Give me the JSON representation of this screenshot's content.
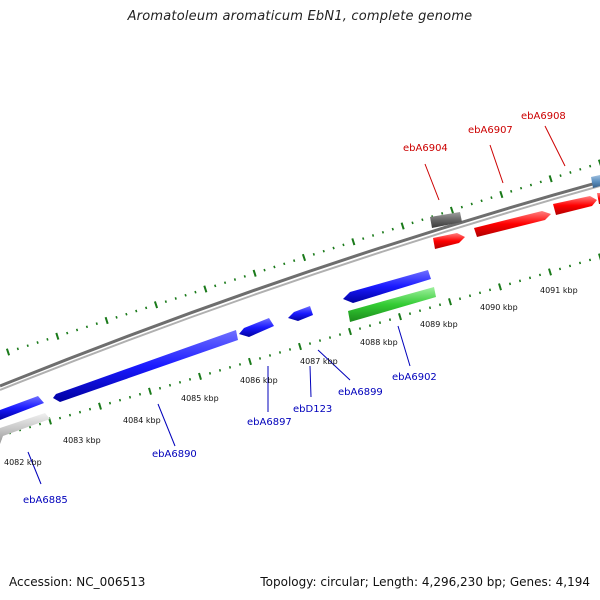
{
  "title": "Aromatoleum aromaticum EbN1, complete genome",
  "footer": {
    "accession": "Accession: NC_006513",
    "summary": "Topology: circular; Length: 4,296,230 bp; Genes: 4,194"
  },
  "colors": {
    "backbone": "#8c8c8c",
    "tick": "#1a7a1a",
    "forward_label": "#cc0000",
    "reverse_label": "#0000bb",
    "gene_red": "#ff0000",
    "gene_blue": "#1a1aff",
    "gene_green": "#33cc33",
    "gene_gray": "#666666",
    "gene_lightgray": "#c8c8c8",
    "gene_steel": "#5b8fbf"
  },
  "kbp_labels": [
    "4082 kbp",
    "4083 kbp",
    "4084 kbp",
    "4085 kbp",
    "4086 kbp",
    "4087 kbp",
    "4088 kbp",
    "4089 kbp",
    "4090 kbp",
    "4091 kbp"
  ],
  "forward_locus_labels": [
    "ebA6904",
    "ebA6907",
    "ebA6908"
  ],
  "reverse_locus_labels": [
    "ebA6885",
    "ebA6890",
    "ebA6897",
    "ebD123",
    "ebA6899",
    "ebA6902"
  ]
}
